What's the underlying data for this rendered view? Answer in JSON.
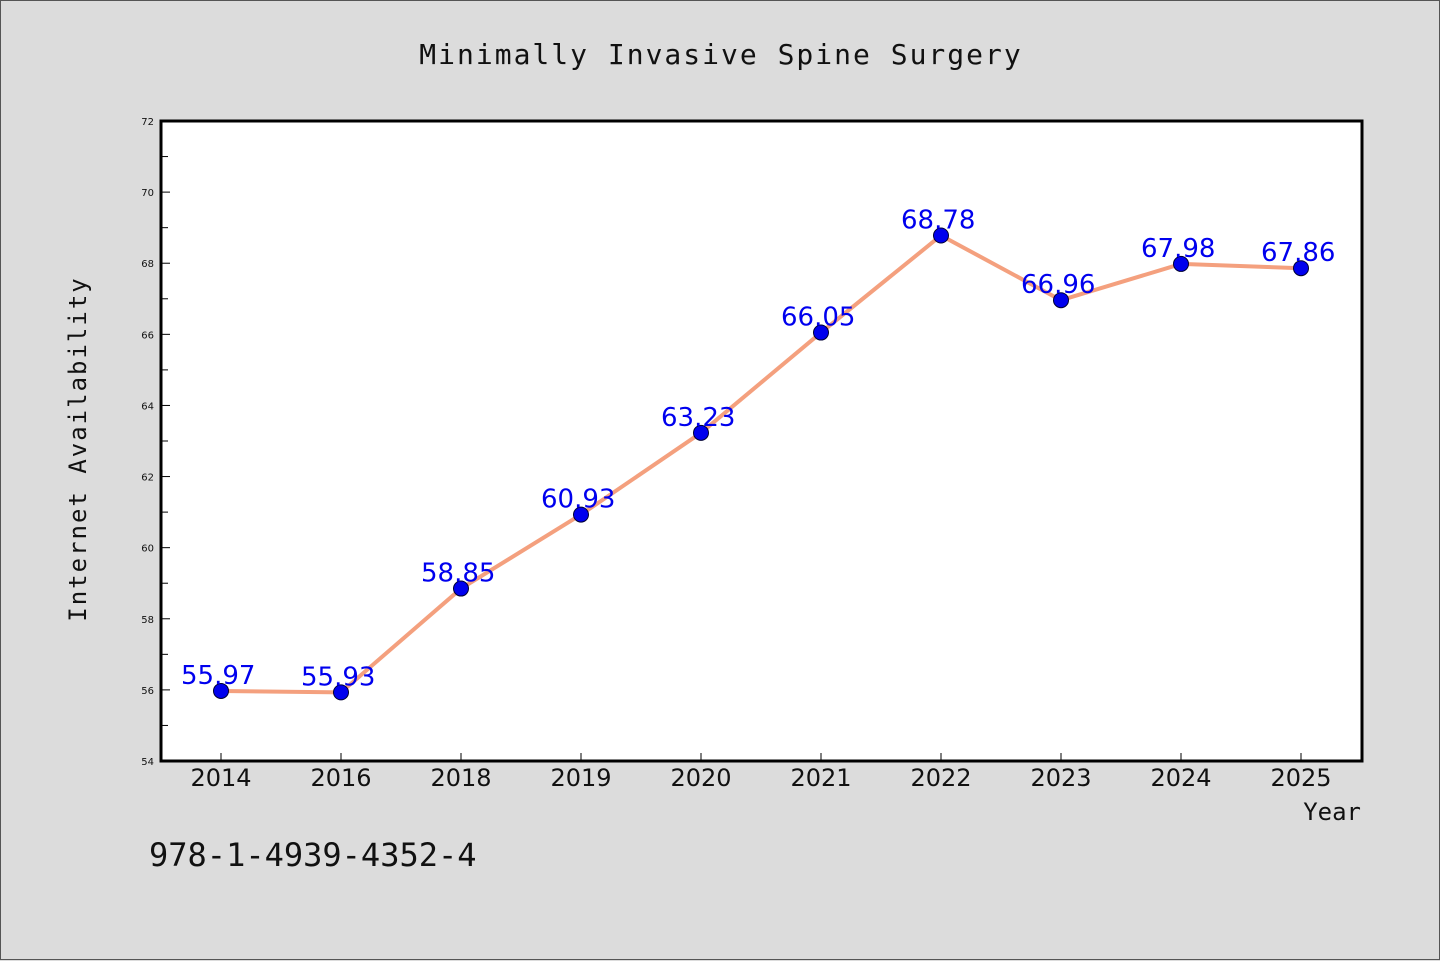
{
  "chart_data": {
    "type": "line",
    "title": "Minimally Invasive Spine Surgery",
    "xlabel": "Year",
    "ylabel": "Internet Availability",
    "categories": [
      "2014",
      "2016",
      "2018",
      "2019",
      "2020",
      "2021",
      "2022",
      "2023",
      "2024",
      "2025"
    ],
    "series": [
      {
        "values": [
          55.97,
          55.93,
          58.85,
          60.93,
          63.23,
          66.05,
          68.78,
          66.96,
          67.98,
          67.86
        ],
        "labels": [
          "55.97",
          "55.93",
          "58.85",
          "60.93",
          "63.23",
          "66.05",
          "68.78",
          "66.96",
          "67.98",
          "67.86"
        ],
        "line_color": "#f4a07e",
        "marker_color": "#0000ee"
      }
    ],
    "ylim": [
      54,
      72
    ],
    "yticks": [
      "54",
      "56",
      "58",
      "60",
      "62",
      "64",
      "66",
      "68",
      "70",
      "72"
    ],
    "grid": false,
    "legend": "none"
  },
  "footer": {
    "isbn": "978-1-4939-4352-4"
  }
}
